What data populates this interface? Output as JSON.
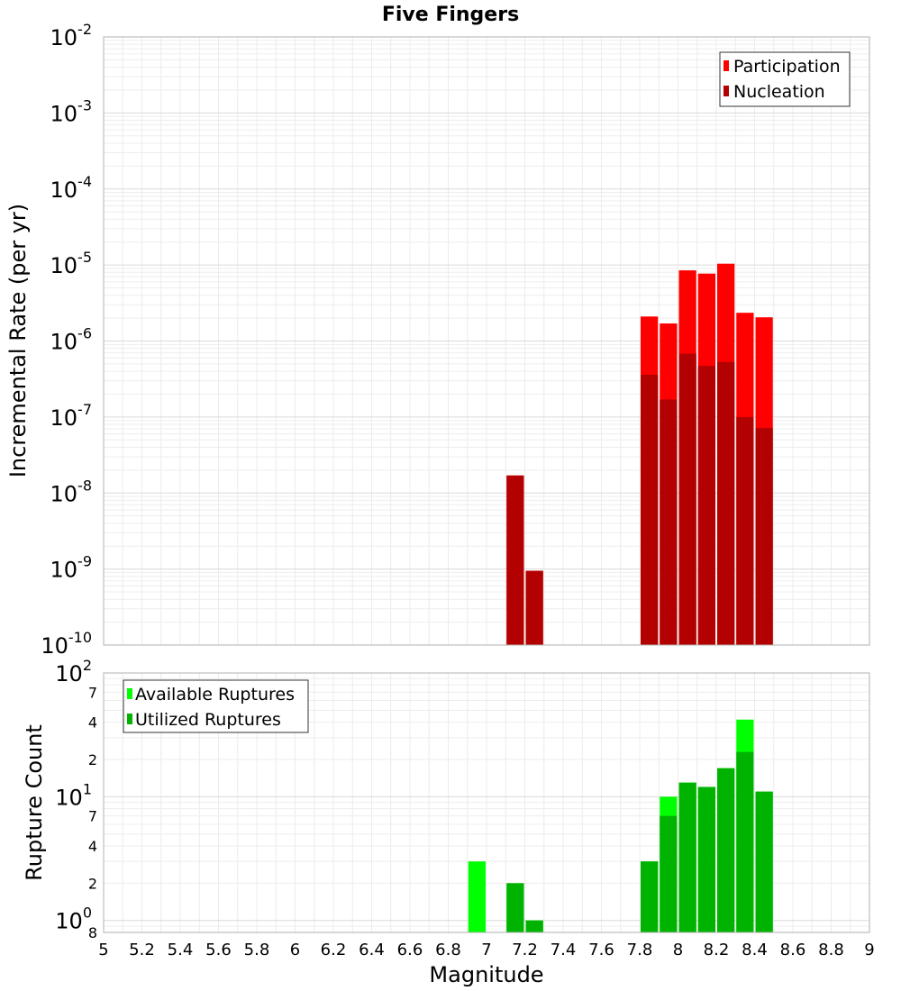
{
  "chart_data": [
    {
      "type": "bar",
      "title": "Five Fingers",
      "xlabel": "",
      "ylabel": "Incremental Rate (per yr)",
      "yscale": "log",
      "ylim": [
        1e-10,
        0.01
      ],
      "xlim": [
        5,
        9
      ],
      "y_ticks": [
        {
          "base": "10",
          "exp": "-2",
          "value": 0.01
        },
        {
          "base": "10",
          "exp": "-3",
          "value": 0.001
        },
        {
          "base": "10",
          "exp": "-4",
          "value": 0.0001
        },
        {
          "base": "10",
          "exp": "-5",
          "value": 1e-05
        },
        {
          "base": "10",
          "exp": "-6",
          "value": 1e-06
        },
        {
          "base": "10",
          "exp": "-7",
          "value": 1e-07
        },
        {
          "base": "10",
          "exp": "-8",
          "value": 1e-08
        },
        {
          "base": "10",
          "exp": "-9",
          "value": 1e-09
        },
        {
          "base": "10",
          "exp": "-10",
          "value": 1e-10
        }
      ],
      "legend_position": "top-right",
      "bar_width": 0.1,
      "series": [
        {
          "name": "Participation",
          "color": "#ff0000",
          "points": [
            {
              "x": 7.15,
              "y": 1.7e-08
            },
            {
              "x": 7.25,
              "y": 9.5e-10
            },
            {
              "x": 7.85,
              "y": 2.1e-06
            },
            {
              "x": 7.95,
              "y": 1.7e-06
            },
            {
              "x": 8.05,
              "y": 8.5e-06
            },
            {
              "x": 8.15,
              "y": 7.7e-06
            },
            {
              "x": 8.25,
              "y": 1.04e-05
            },
            {
              "x": 8.35,
              "y": 2.35e-06
            },
            {
              "x": 8.45,
              "y": 2.05e-06
            }
          ]
        },
        {
          "name": "Nucleation",
          "color": "#b30000",
          "points": [
            {
              "x": 7.15,
              "y": 1.7e-08
            },
            {
              "x": 7.25,
              "y": 9.5e-10
            },
            {
              "x": 7.85,
              "y": 3.6e-07
            },
            {
              "x": 7.95,
              "y": 1.7e-07
            },
            {
              "x": 8.05,
              "y": 6.8e-07
            },
            {
              "x": 8.15,
              "y": 4.7e-07
            },
            {
              "x": 8.25,
              "y": 5.3e-07
            },
            {
              "x": 8.35,
              "y": 1e-07
            },
            {
              "x": 8.45,
              "y": 7.2e-08
            }
          ]
        }
      ]
    },
    {
      "type": "bar",
      "title": "",
      "xlabel": "Magnitude",
      "ylabel": "Rupture Count",
      "yscale": "log",
      "ylim": [
        0.8,
        100
      ],
      "xlim": [
        5,
        9
      ],
      "x_ticks": [
        "5",
        "5.2",
        "5.4",
        "5.6",
        "5.8",
        "6",
        "6.2",
        "6.4",
        "6.6",
        "6.8",
        "7",
        "7.2",
        "7.4",
        "7.6",
        "7.8",
        "8",
        "8.2",
        "8.4",
        "8.6",
        "8.8",
        "9"
      ],
      "y_ticks": [
        {
          "base": "10",
          "exp": "2",
          "value": 100
        },
        {
          "base": "10",
          "exp": "1",
          "value": 10
        },
        {
          "base": "10",
          "exp": "0",
          "value": 1
        }
      ],
      "y_minor_ticks": [
        {
          "label": "7",
          "value": 70
        },
        {
          "label": "4",
          "value": 40
        },
        {
          "label": "2",
          "value": 20
        },
        {
          "label": "7",
          "value": 7
        },
        {
          "label": "4",
          "value": 4
        },
        {
          "label": "2",
          "value": 2
        },
        {
          "label": "8",
          "value": 0.8
        }
      ],
      "legend_position": "top-left",
      "bar_width": 0.1,
      "series": [
        {
          "name": "Available Ruptures",
          "color": "#00ff00",
          "points": [
            {
              "x": 6.95,
              "y": 3
            },
            {
              "x": 7.15,
              "y": 2
            },
            {
              "x": 7.25,
              "y": 1
            },
            {
              "x": 7.85,
              "y": 3
            },
            {
              "x": 7.95,
              "y": 10
            },
            {
              "x": 8.05,
              "y": 13
            },
            {
              "x": 8.15,
              "y": 12
            },
            {
              "x": 8.25,
              "y": 17
            },
            {
              "x": 8.35,
              "y": 42
            },
            {
              "x": 8.45,
              "y": 11
            }
          ]
        },
        {
          "name": "Utilized Ruptures",
          "color": "#00b300",
          "points": [
            {
              "x": 6.95,
              "y": 0.8
            },
            {
              "x": 7.15,
              "y": 2
            },
            {
              "x": 7.25,
              "y": 1
            },
            {
              "x": 7.85,
              "y": 3
            },
            {
              "x": 7.95,
              "y": 7
            },
            {
              "x": 8.05,
              "y": 13
            },
            {
              "x": 8.15,
              "y": 12
            },
            {
              "x": 8.25,
              "y": 17
            },
            {
              "x": 8.35,
              "y": 23
            },
            {
              "x": 8.45,
              "y": 11
            }
          ]
        }
      ]
    }
  ]
}
